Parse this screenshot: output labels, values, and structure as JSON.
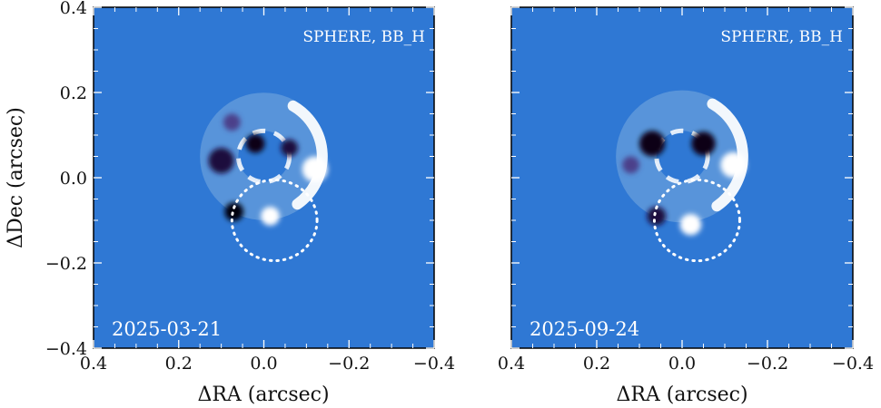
{
  "chart_data": [
    {
      "type": "heatmap",
      "instrument_label": "SPHERE, BB_H",
      "date_label": "2025-03-21",
      "xlabel": "ΔRA (arcsec)",
      "ylabel": "ΔDec (arcsec)",
      "xlim": [
        0.4,
        -0.4
      ],
      "ylim": [
        -0.4,
        0.4
      ],
      "x_ticks": [
        0.4,
        0.2,
        0.0,
        -0.2,
        -0.4
      ],
      "x_tick_labels": [
        "0.4",
        "0.2",
        "0.0",
        "−0.2",
        "−0.4"
      ],
      "y_ticks": [
        0.4,
        0.2,
        0.0,
        -0.2,
        -0.4
      ],
      "y_tick_labels": [
        "0.4",
        "0.2",
        "0.0",
        "−0.2",
        "−0.4"
      ],
      "background_color": "#2f78d4",
      "residual_ring": {
        "center": [
          0.0,
          0.05
        ],
        "inner_radius": 0.06,
        "outer_radius": 0.15
      },
      "blobs": [
        {
          "x": 0.1,
          "y": 0.04,
          "r": 0.03,
          "color": "#1a0e3c"
        },
        {
          "x": 0.02,
          "y": 0.08,
          "r": 0.022,
          "color": "#0b0614"
        },
        {
          "x": -0.06,
          "y": 0.07,
          "r": 0.02,
          "color": "#1a0e3c"
        },
        {
          "x": -0.12,
          "y": 0.02,
          "r": 0.03,
          "color": "#ffffff"
        },
        {
          "x": 0.07,
          "y": -0.08,
          "r": 0.022,
          "color": "#050308"
        },
        {
          "x": -0.015,
          "y": -0.09,
          "r": 0.022,
          "color": "#ffffff"
        },
        {
          "x": 0.075,
          "y": 0.13,
          "r": 0.02,
          "color": "#4b3f8a"
        }
      ],
      "dotted_ellipse": {
        "cx": -0.025,
        "cy": -0.1,
        "rx": 0.1,
        "ry": 0.095
      }
    },
    {
      "type": "heatmap",
      "instrument_label": "SPHERE, BB_H",
      "date_label": "2025-09-24",
      "xlabel": "ΔRA (arcsec)",
      "ylabel": "",
      "xlim": [
        0.4,
        -0.4
      ],
      "ylim": [
        -0.4,
        0.4
      ],
      "x_ticks": [
        0.4,
        0.2,
        0.0,
        -0.2,
        -0.4
      ],
      "x_tick_labels": [
        "0.4",
        "0.2",
        "0.0",
        "−0.2",
        "−0.4"
      ],
      "y_ticks": [
        0.4,
        0.2,
        0.0,
        -0.2,
        -0.4
      ],
      "y_tick_labels": [],
      "background_color": "#2f78d4",
      "residual_ring": {
        "center": [
          0.0,
          0.05
        ],
        "inner_radius": 0.06,
        "outer_radius": 0.155
      },
      "blobs": [
        {
          "x": 0.07,
          "y": 0.08,
          "r": 0.03,
          "color": "#0b0614"
        },
        {
          "x": -0.05,
          "y": 0.08,
          "r": 0.028,
          "color": "#0b0614"
        },
        {
          "x": -0.12,
          "y": 0.03,
          "r": 0.03,
          "color": "#ffffff"
        },
        {
          "x": 0.06,
          "y": -0.09,
          "r": 0.022,
          "color": "#1a0e3c"
        },
        {
          "x": -0.02,
          "y": -0.11,
          "r": 0.025,
          "color": "#ffffff"
        },
        {
          "x": 0.12,
          "y": 0.03,
          "r": 0.02,
          "color": "#4b3f8a"
        }
      ],
      "dotted_ellipse": {
        "cx": -0.035,
        "cy": -0.1,
        "rx": 0.1,
        "ry": 0.095
      }
    }
  ]
}
